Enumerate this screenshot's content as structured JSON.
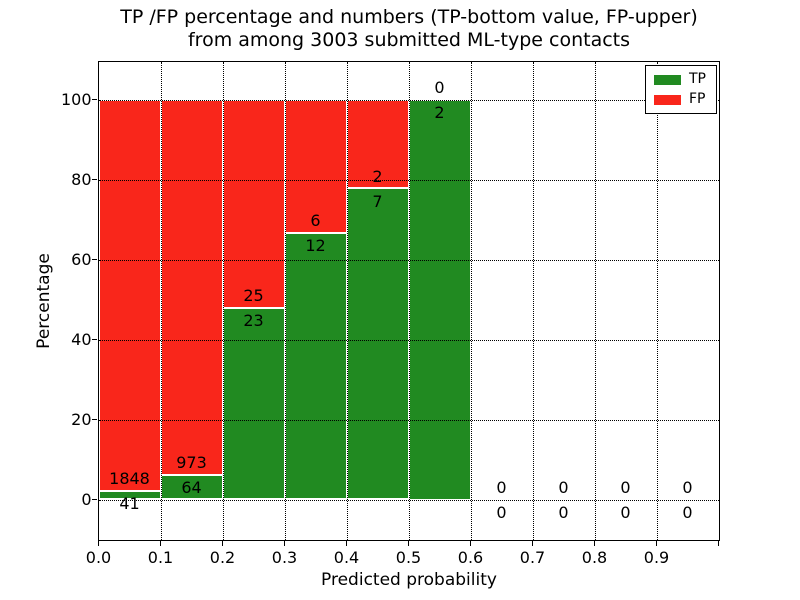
{
  "chart_data": {
    "type": "bar",
    "stacked": true,
    "title": "TP /FP percentage and numbers (TP-bottom value, FP-upper)",
    "subtitle": "from among 3003 submitted ML-type contacts",
    "xlabel": "Predicted probability",
    "ylabel": "Percentage",
    "x_ticks": [
      "0.0",
      "0.1",
      "0.2",
      "0.3",
      "0.4",
      "0.5",
      "0.6",
      "0.7",
      "0.8",
      "0.9"
    ],
    "y_ticks": [
      0,
      20,
      40,
      60,
      80,
      100
    ],
    "xlim": [
      0.0,
      1.0
    ],
    "ylim": [
      -10,
      109.5
    ],
    "grid": true,
    "grid_style": "dotted",
    "bin_width": 0.1,
    "categories": [
      "0.0-0.1",
      "0.1-0.2",
      "0.2-0.3",
      "0.3-0.4",
      "0.4-0.5",
      "0.5-0.6",
      "0.6-0.7",
      "0.7-0.8",
      "0.8-0.9",
      "0.9-1.0"
    ],
    "series": [
      {
        "name": "TP",
        "color": "#218a21",
        "values": [
          41,
          64,
          23,
          12,
          7,
          2,
          0,
          0,
          0,
          0
        ]
      },
      {
        "name": "FP",
        "color": "#f9261b",
        "values": [
          1848,
          973,
          25,
          6,
          2,
          0,
          0,
          0,
          0,
          0
        ]
      }
    ],
    "bar_value_labels_note": "FP count shown above TP/FP boundary, TP count shown below boundary",
    "legend": {
      "position": "upper right",
      "entries": [
        {
          "label": "TP",
          "color": "#218a21"
        },
        {
          "label": "FP",
          "color": "#f9261b"
        }
      ]
    }
  }
}
